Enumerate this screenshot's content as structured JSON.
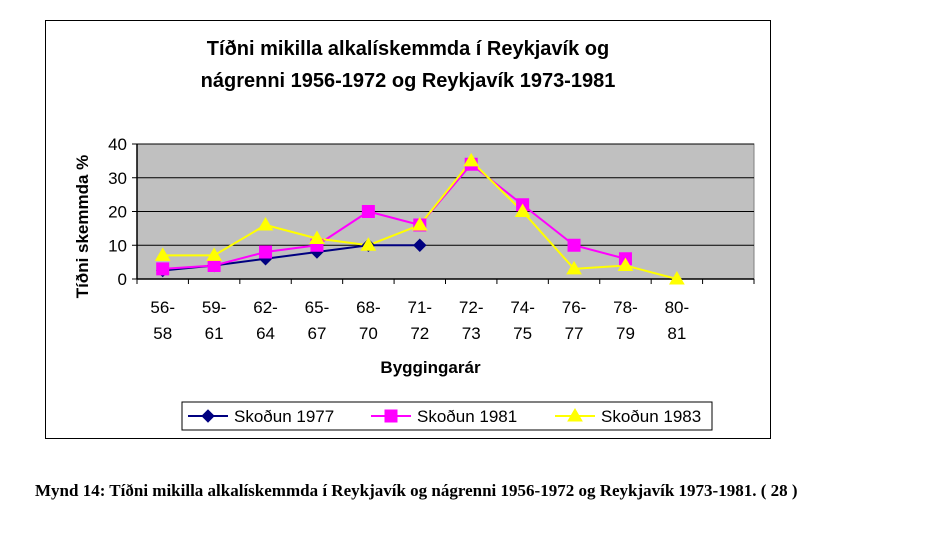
{
  "chart_data": {
    "type": "line",
    "title_lines": [
      "Tíðni mikilla alkalískemmda í Reykjavík og",
      "nágrenni 1956-1972 og Reykjavík 1973-1981"
    ],
    "xlabel": "Byggingarár",
    "ylabel": "Tíðni skemmda %",
    "ylim": [
      0,
      40
    ],
    "yticks": [
      "0",
      "10",
      "20",
      "30",
      "40"
    ],
    "categories": [
      [
        "56-",
        "58"
      ],
      [
        "59-",
        "61"
      ],
      [
        "62-",
        "64"
      ],
      [
        "65-",
        "67"
      ],
      [
        "68-",
        "70"
      ],
      [
        "71-",
        "72"
      ],
      [
        "72-",
        "73"
      ],
      [
        "74-",
        "75"
      ],
      [
        "76-",
        "77"
      ],
      [
        "78-",
        "79"
      ],
      [
        "80-",
        "81"
      ],
      [
        "",
        ""
      ]
    ],
    "grid": true,
    "plot_background": "#c0c0c0",
    "legend_position": "bottom",
    "series": [
      {
        "name": "Skoðun 1977",
        "color": "#000080",
        "marker": "diamond",
        "values": [
          2.5,
          4,
          6,
          8,
          10,
          10,
          null,
          null,
          null,
          null,
          null,
          null
        ]
      },
      {
        "name": "Skoðun 1981",
        "color": "#ff00ff",
        "marker": "square",
        "values": [
          3,
          4,
          8,
          10,
          20,
          16,
          34,
          22,
          10,
          6,
          null,
          null
        ]
      },
      {
        "name": "Skoðun 1983",
        "color": "#ffff00",
        "marker": "triangle",
        "values": [
          7,
          7,
          16,
          12,
          10,
          16,
          35,
          20,
          3,
          4,
          0,
          null
        ]
      }
    ]
  },
  "caption": "Mynd 14: Tíðni mikilla alkalískemmda í Reykjavík og nágrenni 1956-1972 og Reykjavík 1973-1981. ( 28 )"
}
